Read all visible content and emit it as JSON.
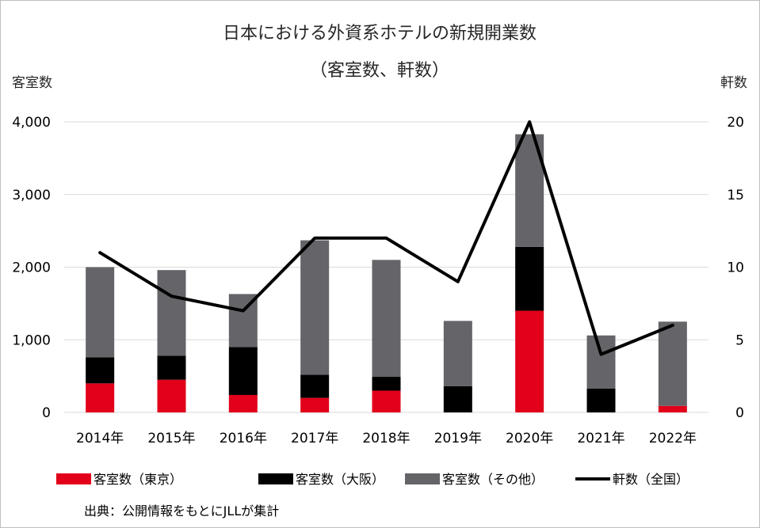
{
  "chart_data": {
    "type": "bar",
    "title": "日本における外資系ホテルの新規開業数",
    "subtitle": "（客室数、軒数）",
    "ylabel": "客室数",
    "y2label": "軒数",
    "categories": [
      "2014年",
      "2015年",
      "2016年",
      "2017年",
      "2018年",
      "2019年",
      "2020年",
      "2021年",
      "2022年"
    ],
    "ylim": [
      0,
      4000
    ],
    "y2lim": [
      0,
      20
    ],
    "yticks": [
      "0",
      "1,000",
      "2,000",
      "3,000",
      "4,000"
    ],
    "y2ticks": [
      "0",
      "5",
      "10",
      "15",
      "20"
    ],
    "stacked": true,
    "series": [
      {
        "name": "客室数（東京）",
        "axis": "left",
        "color": "#e2001a",
        "values": [
          400,
          450,
          240,
          200,
          300,
          0,
          1400,
          0,
          90
        ]
      },
      {
        "name": "客室数（大阪）",
        "axis": "left",
        "color": "#000000",
        "values": [
          360,
          330,
          660,
          320,
          190,
          360,
          880,
          330,
          0
        ]
      },
      {
        "name": "客室数（その他）",
        "axis": "left",
        "color": "#646469",
        "values": [
          1240,
          1180,
          730,
          1850,
          1610,
          900,
          1550,
          730,
          1160
        ]
      }
    ],
    "line_series": {
      "name": "軒数（全国）",
      "axis": "right",
      "type": "line",
      "color": "#000000",
      "values": [
        11,
        8,
        7,
        12,
        12,
        9,
        20,
        4,
        6
      ]
    },
    "legend_position": "bottom",
    "grid": true
  },
  "source_note": "出典：公開情報をもとにJLLが集計"
}
